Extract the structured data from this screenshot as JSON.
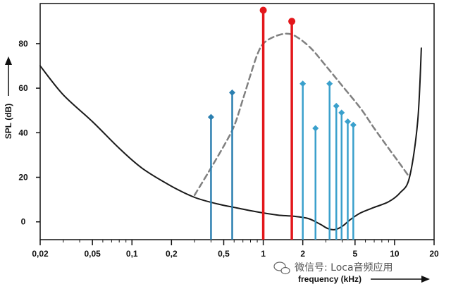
{
  "chart_data": {
    "type": "line",
    "xlabel": "frequency (kHz)",
    "ylabel": "SPL (dB)",
    "x_scale": "log",
    "xlim": [
      0.02,
      20
    ],
    "ylim": [
      -8,
      98
    ],
    "x_ticks": [
      {
        "value": 0.02,
        "label": "0,02"
      },
      {
        "value": 0.05,
        "label": "0,05"
      },
      {
        "value": 0.1,
        "label": "0,1"
      },
      {
        "value": 0.2,
        "label": "0,2"
      },
      {
        "value": 0.5,
        "label": "0,5"
      },
      {
        "value": 1,
        "label": "1"
      },
      {
        "value": 2,
        "label": "2"
      },
      {
        "value": 5,
        "label": "5"
      },
      {
        "value": 10,
        "label": "10"
      },
      {
        "value": 20,
        "label": "20"
      }
    ],
    "y_ticks": [
      {
        "value": 0,
        "label": "0"
      },
      {
        "value": 20,
        "label": "20"
      },
      {
        "value": 40,
        "label": "40"
      },
      {
        "value": 60,
        "label": "60"
      },
      {
        "value": 80,
        "label": "80"
      }
    ],
    "minor_x_ticks": [
      0.03,
      0.04,
      0.06,
      0.07,
      0.08,
      0.09,
      0.3,
      0.4,
      0.6,
      0.7,
      0.8,
      0.9,
      3,
      4,
      6,
      7,
      8,
      9
    ],
    "grid": false,
    "series": [
      {
        "style": "solid",
        "color": "#1a1a1a",
        "x": [
          0.02,
          0.03,
          0.05,
          0.08,
          0.12,
          0.2,
          0.3,
          0.45,
          0.6,
          0.8,
          1.0,
          1.3,
          1.7,
          2.2,
          2.7,
          3.1,
          3.5,
          4.0,
          4.6,
          5.5,
          7,
          9,
          11,
          13,
          15,
          16
        ],
        "y": [
          70,
          57,
          45,
          33,
          24,
          16,
          11,
          8,
          6.5,
          5,
          4,
          3,
          2.5,
          1.5,
          -1,
          -3,
          -3.5,
          -2,
          1,
          4,
          6.5,
          9,
          13,
          20,
          45,
          78
        ]
      },
      {
        "style": "dashed",
        "color": "#808080",
        "x": [
          0.3,
          0.38,
          0.5,
          0.6,
          0.7,
          0.8,
          0.9,
          1.0,
          1.2,
          1.5,
          1.8,
          2.3,
          3,
          4,
          5.5,
          7,
          9,
          11,
          13
        ],
        "y": [
          12,
          22,
          34,
          43,
          55,
          66,
          75,
          80,
          83,
          84.5,
          83,
          78,
          70,
          61,
          51,
          42,
          33,
          26,
          20
        ]
      }
    ],
    "stems": [
      {
        "x": 0.4,
        "y": 47,
        "color": "#2b7fb0",
        "marker": "diamond"
      },
      {
        "x": 0.58,
        "y": 58,
        "color": "#2b7fb0",
        "marker": "diamond"
      },
      {
        "x": 1.0,
        "y": 95,
        "color": "#e3171b",
        "marker": "circle"
      },
      {
        "x": 1.65,
        "y": 90,
        "color": "#e3171b",
        "marker": "circle"
      },
      {
        "x": 2.0,
        "y": 62,
        "color": "#3aa0cc",
        "marker": "diamond"
      },
      {
        "x": 2.5,
        "y": 42,
        "color": "#3aa0cc",
        "marker": "diamond"
      },
      {
        "x": 3.2,
        "y": 62,
        "color": "#3aa0cc",
        "marker": "diamond"
      },
      {
        "x": 3.6,
        "y": 52,
        "color": "#3aa0cc",
        "marker": "diamond"
      },
      {
        "x": 3.95,
        "y": 49,
        "color": "#3aa0cc",
        "marker": "diamond"
      },
      {
        "x": 4.4,
        "y": 45,
        "color": "#3aa0cc",
        "marker": "diamond"
      },
      {
        "x": 4.85,
        "y": 43.5,
        "color": "#3aa0cc",
        "marker": "diamond"
      }
    ]
  },
  "watermark": {
    "text": "微信号: Loca音频应用",
    "icon": "chat-bubble-icon"
  }
}
